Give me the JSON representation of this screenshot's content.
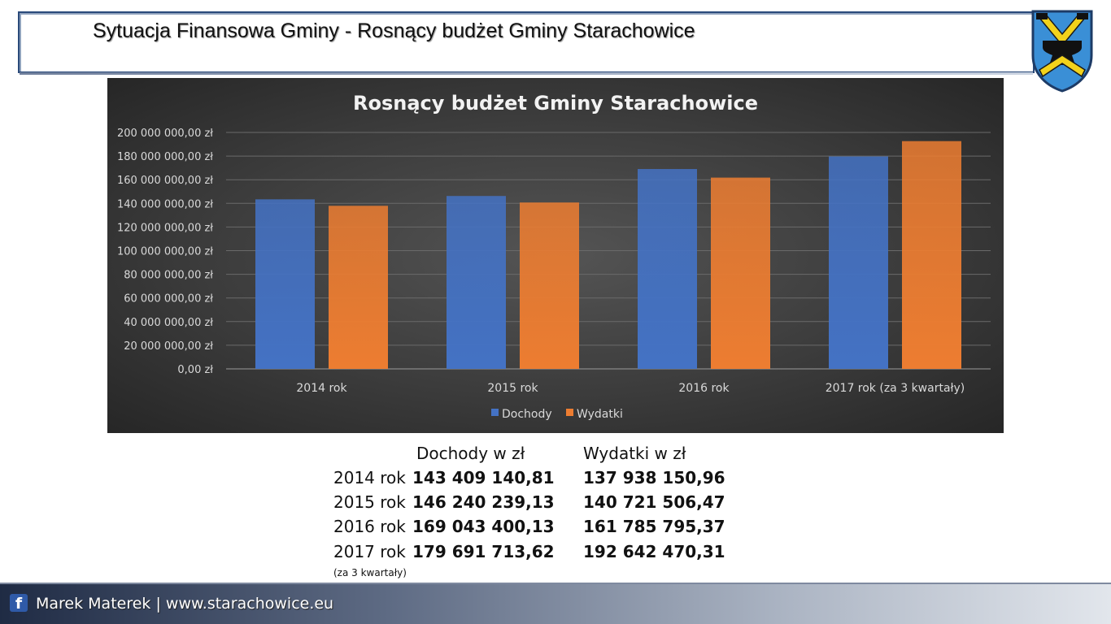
{
  "slide": {
    "title": "Sytuacja Finansowa Gminy - Rosnący budżet Gminy Starachowice"
  },
  "colors": {
    "dochody": "#4472c4",
    "wydatki": "#ed7d31",
    "grid": "#6a6a6a",
    "text": "#d9d9d9"
  },
  "chart_data": {
    "type": "bar",
    "title": "Rosnący budżet Gminy Starachowice",
    "categories": [
      "2014 rok",
      "2015 rok",
      "2016 rok",
      "2017 rok  (za 3 kwartały)"
    ],
    "series": [
      {
        "name": "Dochody",
        "values": [
          143409140.81,
          146240239.13,
          169043400.13,
          179691713.62
        ]
      },
      {
        "name": "Wydatki",
        "values": [
          137938150.96,
          140721506.47,
          161785795.37,
          192642470.31
        ]
      }
    ],
    "ylim": [
      0,
      200000000
    ],
    "yticks": [
      "0,00 zł",
      "20 000 000,00 zł",
      "40 000 000,00 zł",
      "60 000 000,00 zł",
      "80 000 000,00 zł",
      "100 000 000,00 zł",
      "120 000 000,00 zł",
      "140 000 000,00 zł",
      "160 000 000,00 zł",
      "180 000 000,00 zł",
      "200 000 000,00 zł"
    ],
    "xlabel": "",
    "ylabel": "",
    "grid": true,
    "legend": "bottom-center"
  },
  "summary": {
    "header_dochody": "Dochody w zł",
    "header_wydatki": "Wydatki w zł",
    "rows": [
      {
        "year": "2014 rok",
        "dochody": "143 409 140,81",
        "wydatki": "137 938 150,96"
      },
      {
        "year": "2015 rok",
        "dochody": "146 240 239,13",
        "wydatki": "140 721 506,47"
      },
      {
        "year": "2016 rok",
        "dochody": "169 043 400,13",
        "wydatki": "161 785 795,37"
      },
      {
        "year": "2017 rok",
        "dochody": "179 691 713,62",
        "wydatki": "192 642 470,31"
      }
    ],
    "note": "(za 3 kwartały)"
  },
  "footer": {
    "icon": "facebook-icon",
    "text": "Marek Materek | www.starachowice.eu"
  },
  "crest_icon": "starachowice-crest-icon"
}
